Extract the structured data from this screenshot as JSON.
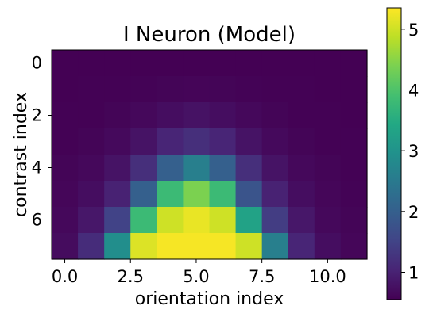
{
  "chart_data": {
    "type": "heatmap",
    "title": "I Neuron (Model)",
    "xlabel": "orientation index",
    "ylabel": "contrast index",
    "colormap": "viridis",
    "n_cols": 12,
    "n_rows": 8,
    "x_ticks": [
      0.0,
      2.5,
      5.0,
      7.5,
      10.0
    ],
    "x_tick_labels": [
      "0.0",
      "2.5",
      "5.0",
      "7.5",
      "10.0"
    ],
    "y_ticks": [
      0,
      2,
      4,
      6
    ],
    "y_tick_labels": [
      "0",
      "2",
      "4",
      "6"
    ],
    "colorbar": {
      "min": 0.55,
      "max": 5.35,
      "ticks": [
        1,
        2,
        3,
        4,
        5
      ],
      "tick_labels": [
        "1",
        "2",
        "3",
        "4",
        "5"
      ]
    },
    "values": [
      [
        0.55,
        0.55,
        0.55,
        0.55,
        0.55,
        0.55,
        0.55,
        0.55,
        0.55,
        0.55,
        0.55,
        0.55
      ],
      [
        0.55,
        0.56,
        0.57,
        0.58,
        0.6,
        0.61,
        0.6,
        0.58,
        0.57,
        0.56,
        0.55,
        0.55
      ],
      [
        0.56,
        0.57,
        0.6,
        0.65,
        0.72,
        0.78,
        0.72,
        0.65,
        0.6,
        0.57,
        0.56,
        0.55
      ],
      [
        0.57,
        0.6,
        0.66,
        0.8,
        1.05,
        1.2,
        1.05,
        0.8,
        0.66,
        0.6,
        0.57,
        0.56
      ],
      [
        0.6,
        0.65,
        0.8,
        1.2,
        2.0,
        2.6,
        2.0,
        1.2,
        0.8,
        0.65,
        0.6,
        0.57
      ],
      [
        0.62,
        0.72,
        1.0,
        2.0,
        3.8,
        4.4,
        3.8,
        1.8,
        1.0,
        0.72,
        0.62,
        0.58
      ],
      [
        0.65,
        0.85,
        1.5,
        3.8,
        5.0,
        5.2,
        5.0,
        3.3,
        1.4,
        0.85,
        0.65,
        0.6
      ],
      [
        0.7,
        1.15,
        2.9,
        5.1,
        5.3,
        5.3,
        5.3,
        5.0,
        2.6,
        1.05,
        0.72,
        0.62
      ]
    ]
  }
}
